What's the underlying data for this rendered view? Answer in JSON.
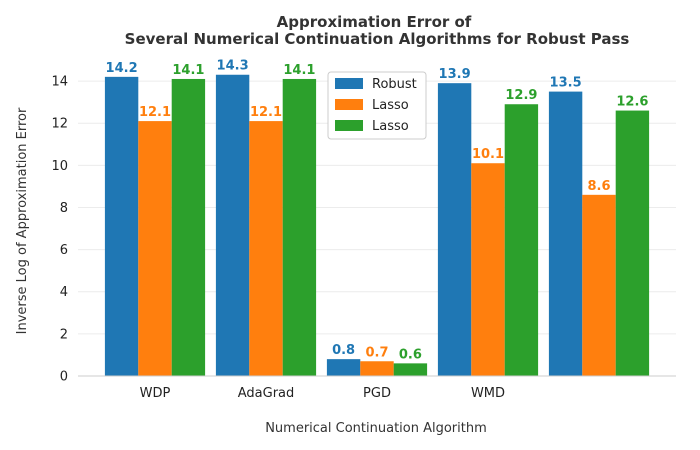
{
  "chart_data": {
    "type": "bar",
    "title_lines": [
      "Approximation Error of",
      "Several Numerical Continuation Algorithms for Robust Pass"
    ],
    "xlabel": "Numerical Continuation Algorithm",
    "ylabel": "Inverse Log of Approximation Error",
    "categories": [
      "WDP",
      "AdaGrad",
      "PGD",
      "WMD",
      ""
    ],
    "series": [
      {
        "name": "Robust",
        "color": "#1f77b4",
        "values": [
          14.2,
          14.3,
          0.8,
          13.9,
          13.5
        ]
      },
      {
        "name": "Lasso",
        "color": "#ff7f0e",
        "values": [
          12.1,
          12.1,
          0.7,
          10.1,
          8.6
        ]
      },
      {
        "name": "Lasso",
        "color": "#2ca02c",
        "values": [
          14.1,
          14.1,
          0.6,
          12.9,
          12.6
        ]
      }
    ],
    "ylim": [
      0,
      15
    ],
    "yticks": [
      0,
      2,
      4,
      6,
      8,
      10,
      12,
      14
    ],
    "grid": true,
    "legend_position": "top-center"
  }
}
